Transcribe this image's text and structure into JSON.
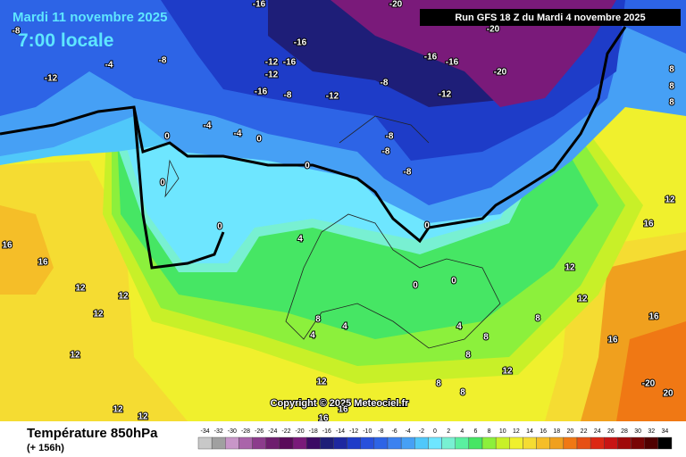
{
  "header": {
    "date": "Mardi 11 novembre 2025",
    "time": "7:00 locale",
    "run": "Run GFS 18 Z du Mardi 4 novembre 2025",
    "copyright": "Copyright © 2025 Meteociel.fr"
  },
  "footer": {
    "parameter": "Température 850hPa",
    "lead": "(+ 156h)"
  },
  "colorbar": {
    "values": [
      -34,
      -32,
      -30,
      -28,
      -26,
      -24,
      -22,
      -20,
      -18,
      -16,
      -14,
      -12,
      -10,
      -8,
      -6,
      -4,
      -2,
      0,
      2,
      4,
      6,
      8,
      10,
      12,
      14,
      16,
      18,
      20,
      22,
      24,
      26,
      28,
      30,
      32,
      34
    ],
    "colors": [
      "#c8c8c8",
      "#a0a0a0",
      "#c896c8",
      "#aa64aa",
      "#8c3c8c",
      "#6e1e6e",
      "#5a0a5a",
      "#7a1a7a",
      "#3c0a64",
      "#1e1e78",
      "#1e28a0",
      "#1e3cc8",
      "#2850dc",
      "#2d64e6",
      "#3c82f0",
      "#46a0f5",
      "#50c8fa",
      "#6ee6ff",
      "#78f0d2",
      "#5af0a0",
      "#46e664",
      "#8cf03c",
      "#c8f028",
      "#f0f02d",
      "#f5dc32",
      "#f5be28",
      "#f0a01e",
      "#f07814",
      "#e65014",
      "#dc2814",
      "#c81414",
      "#a00a0a",
      "#780505",
      "#500000",
      "#000000"
    ]
  },
  "contour_labels": [
    -12,
    -8,
    -4,
    -8,
    -16,
    -16,
    -12,
    -16,
    -12,
    -16,
    -8,
    -12,
    -8,
    -20,
    -20,
    -16,
    -16,
    -20,
    -12,
    8,
    8,
    8,
    0,
    -4,
    -4,
    0,
    0,
    -8,
    -8,
    -8,
    0,
    0,
    0,
    4,
    16,
    16,
    12,
    12,
    12,
    12,
    12,
    12,
    0,
    0,
    4,
    4,
    8,
    12,
    16,
    16,
    8,
    8,
    8,
    12,
    12,
    12,
    16,
    12,
    16,
    16,
    8,
    -20,
    20,
    4,
    8
  ]
}
